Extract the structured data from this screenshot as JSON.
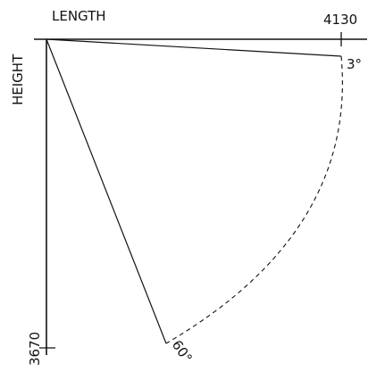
{
  "diagram": {
    "axes": {
      "x_label": "LENGTH",
      "y_label": "HEIGHT",
      "x_max_label": "4130",
      "y_max_label": "3670"
    },
    "angles": {
      "low_label": "3°",
      "high_label": "60°"
    },
    "colors": {
      "stroke": "#111111",
      "background": "#ffffff"
    }
  }
}
